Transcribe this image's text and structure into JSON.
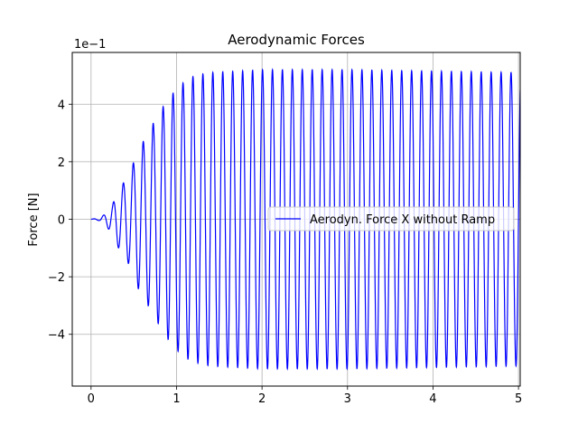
{
  "chart_data": {
    "type": "line",
    "title": "Aerodynamic Forces",
    "xlabel": "",
    "ylabel": "Force [N]",
    "offset_label": "1e−1",
    "xlim": [
      -0.22,
      5.02
    ],
    "ylim": [
      -5.8,
      5.8
    ],
    "xticks": [
      0,
      1,
      2,
      3,
      4,
      5
    ],
    "yticks": [
      -4,
      -2,
      0,
      2,
      4
    ],
    "grid": true,
    "legend_position": "center-right",
    "series": [
      {
        "name": "Aerodyn. Force X without Ramp",
        "color": "#0000ff",
        "frequency_hz": 8.6,
        "envelope_peaks": {
          "x": [
            0,
            0.1,
            0.15,
            0.25,
            0.3,
            0.45,
            0.55,
            0.65,
            0.72,
            0.8,
            0.88,
            0.95,
            1.02,
            1.1,
            1.18,
            1.25,
            1.3,
            1.4,
            1.5,
            1.7,
            2.0,
            2.5,
            3.0,
            4.0,
            5.0
          ],
          "y": [
            0,
            0.05,
            0.15,
            0.5,
            0.9,
            1.6,
            2.4,
            2.9,
            3.3,
            3.7,
            4.1,
            4.35,
            4.6,
            4.8,
            4.95,
            5.0,
            5.05,
            5.1,
            5.12,
            5.15,
            5.2,
            5.2,
            5.2,
            5.15,
            5.1
          ]
        },
        "x_end": 5.02
      }
    ]
  }
}
